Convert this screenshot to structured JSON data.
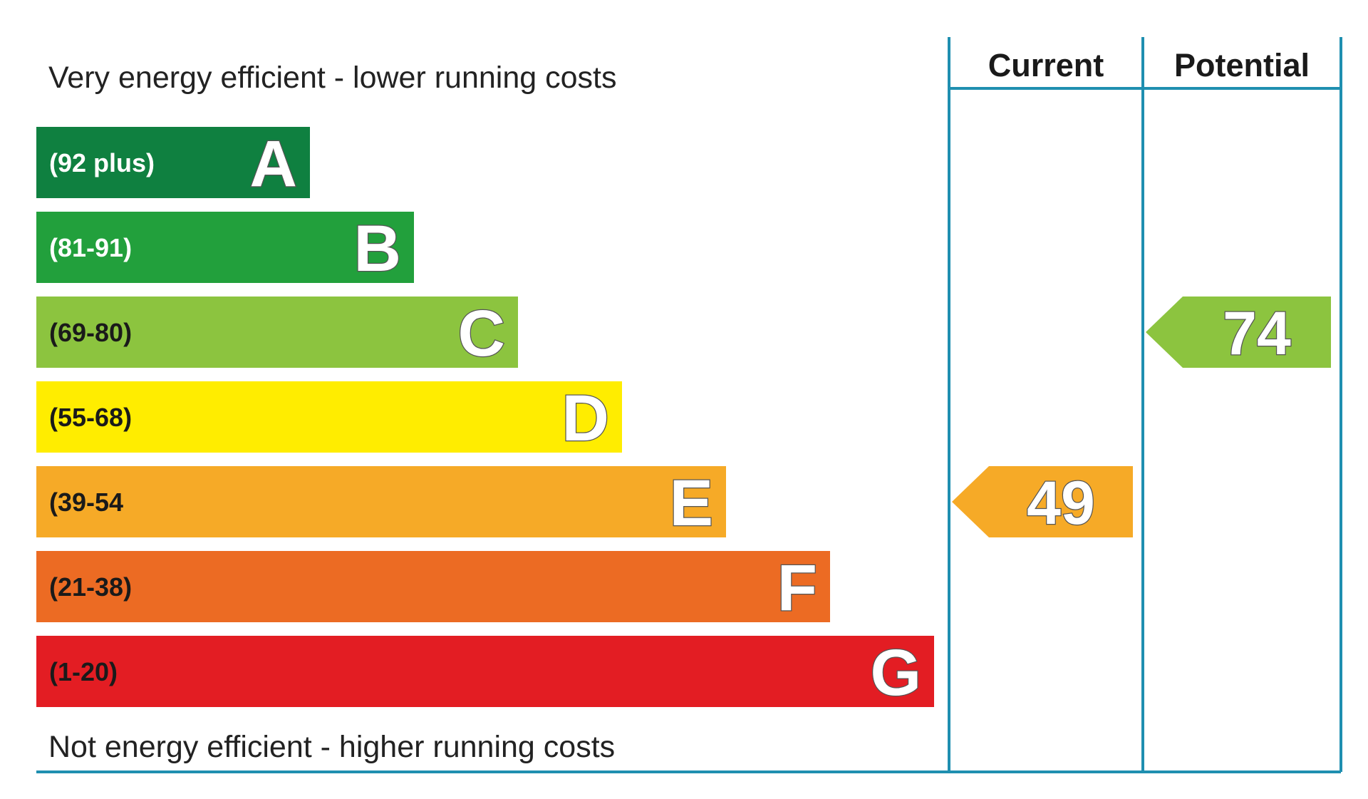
{
  "chart_data": {
    "type": "bar",
    "top_caption": "Very energy efficient - lower running costs",
    "bottom_caption": "Not energy efficient - higher running costs",
    "columns": [
      "Current",
      "Potential"
    ],
    "bands": [
      {
        "letter": "A",
        "range": "(92 plus)",
        "color": "#0f8040",
        "range_color": "#ffffff"
      },
      {
        "letter": "B",
        "range": "(81-91)",
        "color": "#22a03c",
        "range_color": "#ffffff"
      },
      {
        "letter": "C",
        "range": "(69-80)",
        "color": "#8cc43f",
        "range_color": "#1a1a1a"
      },
      {
        "letter": "D",
        "range": "(55-68)",
        "color": "#ffed00",
        "range_color": "#1a1a1a"
      },
      {
        "letter": "E",
        "range": "(39-54",
        "color": "#f6aa27",
        "range_color": "#1a1a1a"
      },
      {
        "letter": "F",
        "range": "(21-38)",
        "color": "#ec6b23",
        "range_color": "#1a1a1a"
      },
      {
        "letter": "G",
        "range": "(1-20)",
        "color": "#e31d23",
        "range_color": "#1a1a1a"
      }
    ],
    "ratings": [
      {
        "column": "Current",
        "value": 49,
        "band": "E",
        "color": "#f6aa27"
      },
      {
        "column": "Potential",
        "value": 74,
        "band": "C",
        "color": "#8cc43f"
      }
    ],
    "frame_color": "#1f8fb0"
  }
}
